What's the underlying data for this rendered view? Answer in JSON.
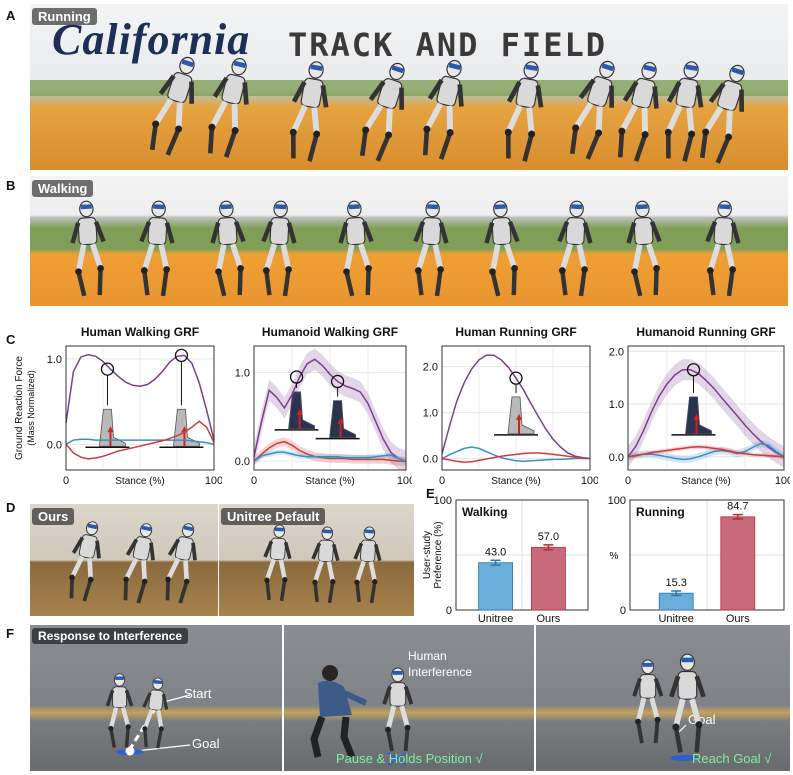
{
  "panels": {
    "A": {
      "letter": "A",
      "tag": "Running",
      "sign_text": "TRACK AND FIELD",
      "logo_text": "California"
    },
    "B": {
      "letter": "B",
      "tag": "Walking"
    },
    "C": {
      "letter": "C"
    },
    "D": {
      "letter": "D",
      "left_tag": "Ours",
      "right_tag": "Unitree Default"
    },
    "E": {
      "letter": "E"
    },
    "F": {
      "letter": "F",
      "title": "Response to Interference",
      "start": "Start",
      "goal1": "Goal",
      "human": "Human",
      "interference": "Interference",
      "pause": "Pause & Holds Position √",
      "goal2": "Goal",
      "reach": "Reach Goal √"
    }
  },
  "colors": {
    "purple": "#7b3f8f",
    "blue": "#3a8fc2",
    "red": "#d13a3a",
    "bar_blue": "#6aaedb",
    "bar_red": "#c86a7a",
    "sky": "#eef0f2",
    "track": "#e8a23a"
  },
  "chart_data": [
    {
      "type": "line",
      "title": "Human Walking GRF",
      "xlabel": "Stance (%)",
      "ylabel": "Ground Reaction Force",
      "ylabel2": "(Mass Normalized)",
      "xlim": [
        0,
        100
      ],
      "ylim": [
        -0.3,
        1.15
      ],
      "xticks": [
        "0",
        "100"
      ],
      "yticks": [
        {
          "v": 0.0,
          "t": "0.0"
        },
        {
          "v": 1.0,
          "t": "1.0"
        }
      ],
      "x": [
        0,
        5,
        10,
        15,
        20,
        25,
        30,
        35,
        40,
        45,
        50,
        55,
        60,
        65,
        70,
        75,
        80,
        85,
        90,
        95,
        100
      ],
      "series": [
        {
          "color": "purple",
          "values": [
            0.25,
            0.85,
            1.02,
            1.05,
            1.03,
            0.97,
            0.88,
            0.8,
            0.73,
            0.69,
            0.68,
            0.7,
            0.76,
            0.85,
            0.96,
            1.03,
            1.04,
            0.95,
            0.72,
            0.4,
            0.05
          ]
        },
        {
          "color": "blue",
          "values": [
            0.0,
            0.05,
            0.06,
            0.06,
            0.05,
            0.05,
            0.05,
            0.05,
            0.05,
            0.05,
            0.05,
            0.05,
            0.05,
            0.05,
            0.05,
            0.05,
            0.05,
            0.04,
            0.03,
            0.02,
            0.0
          ]
        },
        {
          "color": "red",
          "values": [
            0.0,
            -0.1,
            -0.15,
            -0.17,
            -0.16,
            -0.14,
            -0.11,
            -0.08,
            -0.06,
            -0.04,
            -0.02,
            0.0,
            0.02,
            0.04,
            0.07,
            0.1,
            0.14,
            0.2,
            0.27,
            0.2,
            0.02
          ]
        }
      ]
    },
    {
      "type": "line",
      "title": "Humanoid Walking GRF",
      "xlabel": "Stance (%)",
      "xlim": [
        0,
        100
      ],
      "ylim": [
        -0.1,
        1.3
      ],
      "xticks": [
        "0",
        "100"
      ],
      "yticks": [
        {
          "v": 0.0,
          "t": "0.0"
        },
        {
          "v": 1.0,
          "t": "1.0"
        }
      ],
      "x": [
        0,
        5,
        10,
        15,
        20,
        25,
        30,
        35,
        40,
        45,
        50,
        55,
        60,
        65,
        70,
        75,
        80,
        85,
        90,
        95,
        100
      ],
      "series": [
        {
          "color": "purple",
          "values": [
            0.05,
            0.45,
            0.8,
            0.72,
            0.6,
            0.75,
            0.95,
            1.1,
            1.15,
            1.08,
            0.98,
            0.9,
            0.85,
            0.82,
            0.78,
            0.65,
            0.45,
            0.25,
            0.1,
            0.03,
            0.0
          ],
          "band": 0.12
        },
        {
          "color": "red",
          "values": [
            0.0,
            0.08,
            0.15,
            0.2,
            0.22,
            0.18,
            0.12,
            0.08,
            0.05,
            0.04,
            0.03,
            0.03,
            0.03,
            0.02,
            0.02,
            0.02,
            0.02,
            0.02,
            0.01,
            0.0,
            0.0
          ],
          "band": 0.05
        },
        {
          "color": "blue",
          "values": [
            0.0,
            0.06,
            0.08,
            0.1,
            0.1,
            0.08,
            0.06,
            0.05,
            0.05,
            0.05,
            0.05,
            0.05,
            0.04,
            0.04,
            0.04,
            0.04,
            0.05,
            0.06,
            0.07,
            0.03,
            0.0
          ],
          "band": 0.03
        }
      ]
    },
    {
      "type": "line",
      "title": "Human Running GRF",
      "xlabel": "Stance (%)",
      "xlim": [
        0,
        100
      ],
      "ylim": [
        -0.25,
        2.45
      ],
      "xticks": [
        "0",
        "100"
      ],
      "yticks": [
        {
          "v": 0.0,
          "t": "0.0"
        },
        {
          "v": 1.0,
          "t": "1.0"
        },
        {
          "v": 2.0,
          "t": "2.0"
        }
      ],
      "x": [
        0,
        5,
        10,
        15,
        20,
        25,
        30,
        35,
        40,
        45,
        50,
        55,
        60,
        65,
        70,
        75,
        80,
        85,
        90,
        95,
        100
      ],
      "series": [
        {
          "color": "purple",
          "values": [
            0.1,
            0.7,
            1.25,
            1.65,
            1.95,
            2.15,
            2.25,
            2.25,
            2.15,
            1.98,
            1.75,
            1.5,
            1.2,
            0.92,
            0.65,
            0.42,
            0.25,
            0.12,
            0.05,
            0.02,
            0.0
          ]
        },
        {
          "color": "blue",
          "values": [
            0.0,
            0.08,
            0.15,
            0.22,
            0.25,
            0.22,
            0.15,
            0.08,
            0.02,
            -0.02,
            -0.05,
            -0.06,
            -0.05,
            -0.04,
            -0.03,
            -0.02,
            -0.02,
            -0.01,
            0.0,
            0.0,
            0.0
          ]
        },
        {
          "color": "red",
          "values": [
            0.0,
            -0.03,
            -0.06,
            -0.08,
            -0.07,
            -0.04,
            -0.01,
            0.02,
            0.05,
            0.07,
            0.09,
            0.11,
            0.12,
            0.12,
            0.11,
            0.09,
            0.07,
            0.05,
            0.03,
            0.01,
            0.0
          ]
        }
      ]
    },
    {
      "type": "line",
      "title": "Humanoid Running GRF",
      "xlabel": "Stance (%)",
      "xlim": [
        0,
        100
      ],
      "ylim": [
        -0.25,
        2.1
      ],
      "xticks": [
        "0",
        "100"
      ],
      "yticks": [
        {
          "v": 0.0,
          "t": "0.0"
        },
        {
          "v": 1.0,
          "t": "1.0"
        },
        {
          "v": 2.0,
          "t": "2.0"
        }
      ],
      "x": [
        0,
        5,
        10,
        15,
        20,
        25,
        30,
        35,
        40,
        45,
        50,
        55,
        60,
        65,
        70,
        75,
        80,
        85,
        90,
        95,
        100
      ],
      "series": [
        {
          "color": "purple",
          "values": [
            0.0,
            0.2,
            0.5,
            0.85,
            1.15,
            1.38,
            1.55,
            1.65,
            1.65,
            1.58,
            1.45,
            1.3,
            1.12,
            0.95,
            0.78,
            0.6,
            0.44,
            0.3,
            0.18,
            0.08,
            0.0
          ],
          "band": 0.2
        },
        {
          "color": "blue",
          "values": [
            0.0,
            0.03,
            0.05,
            0.05,
            0.03,
            0.0,
            -0.03,
            -0.05,
            -0.04,
            0.0,
            0.05,
            0.1,
            0.12,
            0.1,
            0.06,
            0.1,
            0.18,
            0.25,
            0.22,
            0.1,
            0.0
          ],
          "band": 0.07
        },
        {
          "color": "red",
          "values": [
            0.0,
            0.02,
            0.05,
            0.08,
            0.1,
            0.12,
            0.14,
            0.16,
            0.18,
            0.19,
            0.18,
            0.16,
            0.14,
            0.11,
            0.08,
            0.06,
            0.04,
            0.03,
            0.02,
            0.01,
            0.0
          ],
          "band": 0.04
        }
      ]
    },
    {
      "type": "bar",
      "title": "Walking",
      "ylabel": "User-study",
      "ylabel2": "Preference (%)",
      "categories": [
        "Unitree",
        "Ours"
      ],
      "values": [
        43.0,
        57.0
      ],
      "errors": [
        2.2,
        2.2
      ],
      "value_labels": [
        "43.0",
        "57.0"
      ],
      "ylim": [
        0,
        100
      ],
      "yticks": [
        {
          "v": 0,
          "t": "0"
        },
        {
          "v": 100,
          "t": "100"
        }
      ]
    },
    {
      "type": "bar",
      "title": "Running",
      "ylabel": "%",
      "categories": [
        "Unitree",
        "Ours"
      ],
      "values": [
        15.3,
        84.7
      ],
      "errors": [
        2.0,
        2.0
      ],
      "value_labels": [
        "15.3",
        "84.7"
      ],
      "ylim": [
        0,
        100
      ],
      "yticks": [
        {
          "v": 0,
          "t": "0"
        },
        {
          "v": 100,
          "t": "100"
        }
      ]
    }
  ]
}
